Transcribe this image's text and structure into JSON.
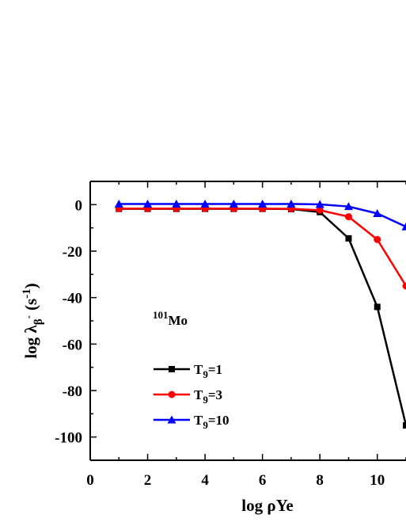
{
  "chart_data": {
    "type": "line",
    "xlabel": "log ρYe",
    "ylabel_parts": {
      "main": "log λ",
      "sub_beta": "β",
      "sup_minus": "-",
      "unit": "(s",
      "unit_sup": "-1",
      "unit_close": ")"
    },
    "xlim": [
      0,
      11
    ],
    "ylim": [
      -110,
      10
    ],
    "x_ticks": [
      0,
      2,
      4,
      6,
      8,
      10
    ],
    "x_tick_labels": [
      "0",
      "2",
      "4",
      "6",
      "8",
      "10"
    ],
    "y_ticks": [
      0,
      -20,
      -40,
      -60,
      -80,
      -100
    ],
    "y_tick_labels": [
      "0",
      "-20",
      "-40",
      "-60",
      "-80",
      "-100"
    ],
    "annotation": {
      "sup": "101",
      "text": "Mo"
    },
    "legend_position": "bottom-left",
    "series": [
      {
        "name": "T9=1",
        "label_main": "T",
        "label_sub": "9",
        "label_rest": "=1",
        "color": "#000000",
        "marker": "square",
        "x": [
          1,
          2,
          3,
          4,
          5,
          6,
          7,
          8,
          9,
          10,
          11
        ],
        "y": [
          -1.8,
          -1.8,
          -1.8,
          -1.8,
          -1.8,
          -1.8,
          -1.9,
          -3.2,
          -14.5,
          -44.0,
          -95.0
        ]
      },
      {
        "name": "T9=3",
        "label_main": "T",
        "label_sub": "9",
        "label_rest": "=3",
        "color": "#ff0000",
        "marker": "circle",
        "x": [
          1,
          2,
          3,
          4,
          5,
          6,
          7,
          8,
          9,
          10,
          11
        ],
        "y": [
          -1.7,
          -1.7,
          -1.7,
          -1.7,
          -1.7,
          -1.7,
          -1.8,
          -2.4,
          -5.2,
          -15.0,
          -35.0
        ]
      },
      {
        "name": "T9=10",
        "label_main": "T",
        "label_sub": "9",
        "label_rest": "=10",
        "color": "#0000ff",
        "marker": "triangle",
        "x": [
          1,
          2,
          3,
          4,
          5,
          6,
          7,
          8,
          9,
          10,
          11
        ],
        "y": [
          0.3,
          0.3,
          0.3,
          0.3,
          0.3,
          0.3,
          0.3,
          0.1,
          -0.8,
          -3.8,
          -9.5
        ]
      }
    ]
  }
}
